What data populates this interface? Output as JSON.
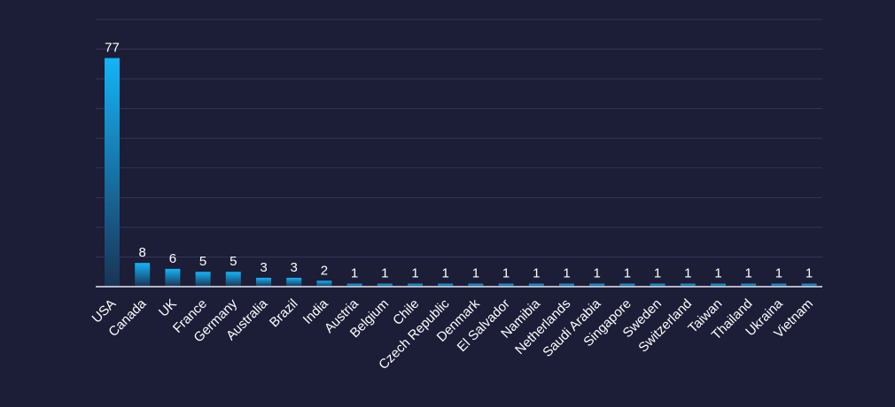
{
  "colors": {
    "background": "#1c1d36",
    "bar_top": "#14b4f8",
    "bar_bottom": "#1a3355",
    "grid": "#33355a",
    "axis": "#e6e8f2",
    "text": "#ffffff"
  },
  "chart_data": {
    "type": "bar",
    "title": "",
    "xlabel": "",
    "ylabel": "",
    "categories": [
      "USA",
      "Canada",
      "UK",
      "France",
      "Germany",
      "Australia",
      "Brazil",
      "India",
      "Austria",
      "Belgium",
      "Chile",
      "Czech Republic",
      "Denmark",
      "El Salvador",
      "Namibia",
      "Netherlands",
      "Saudi Arabia",
      "Singapore",
      "Sweden",
      "Switzerland",
      "Taiwan",
      "Thailand",
      "Ukraina",
      "Vietnam"
    ],
    "values": [
      77,
      8,
      6,
      5,
      5,
      3,
      3,
      2,
      1,
      1,
      1,
      1,
      1,
      1,
      1,
      1,
      1,
      1,
      1,
      1,
      1,
      1,
      1,
      1
    ],
    "data_labels": [
      "77",
      "8",
      "6",
      "5",
      "5",
      "3",
      "3",
      "2",
      "1",
      "1",
      "1",
      "1",
      "1",
      "1",
      "1",
      "1",
      "1",
      "1",
      "1",
      "1",
      "1",
      "1",
      "1",
      "1"
    ],
    "ylim": [
      0,
      90
    ],
    "grid": true,
    "gridline_step": 10,
    "legend": "none",
    "tick_label_rotation": -45
  }
}
